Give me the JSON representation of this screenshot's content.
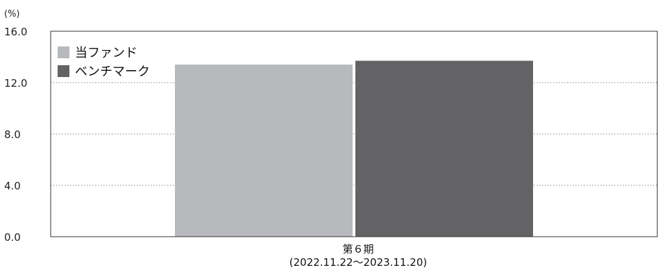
{
  "chart_data": {
    "type": "bar",
    "unit_label": "(%)",
    "categories": [
      "第６期"
    ],
    "category_sublabels": [
      "(2022.11.22～2023.11.20)"
    ],
    "series": [
      {
        "name": "当ファンド",
        "values": [
          13.4
        ],
        "color": "#b8b9bc"
      },
      {
        "name": "ベンチマーク",
        "values": [
          13.7
        ],
        "color": "#636365"
      }
    ],
    "ylim": [
      0,
      16
    ],
    "yticks": [
      0,
      4,
      8,
      12,
      16
    ],
    "ytick_labels": [
      "0.0",
      "4.0",
      "8.0",
      "12.0",
      "16.0"
    ],
    "grid": true,
    "grid_style": "dotted",
    "legend_position": "top-left"
  }
}
